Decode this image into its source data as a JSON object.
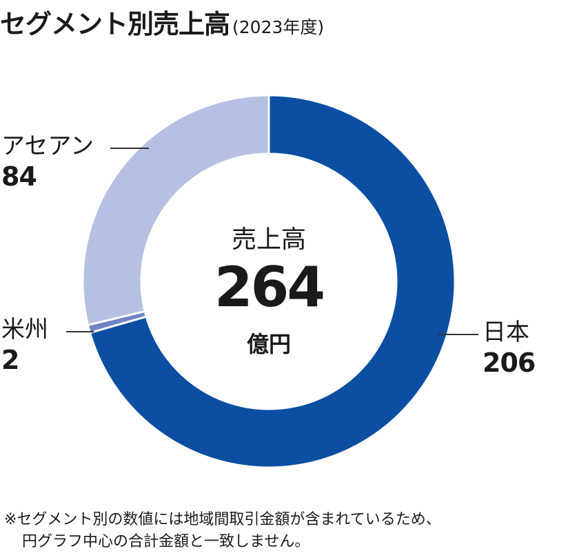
{
  "header": {
    "title": "セグメント別売上高",
    "subtitle": "(2023年度)"
  },
  "center": {
    "label": "売上高",
    "value": "264",
    "unit": "億円"
  },
  "note": {
    "line1": "※セグメント別の数値には地域間取引金額が含まれているため、",
    "line2": "円グラフ中心の合計金額と一致しません。"
  },
  "colors": {
    "japan": "#0b4ea2",
    "americas": "#6f84c3",
    "asean": "#b5c0e3",
    "separator": "#ffffff"
  },
  "chart_data": {
    "type": "pie",
    "variant": "donut",
    "title": "セグメント別売上高",
    "subtitle": "(2023年度)",
    "total": 264,
    "unit": "億円",
    "categories": [
      "日本",
      "米州",
      "アセアン"
    ],
    "values": [
      206,
      2,
      84
    ],
    "series": [
      {
        "name": "日本",
        "value": 206,
        "label": "206"
      },
      {
        "name": "米州",
        "value": 2,
        "label": "2"
      },
      {
        "name": "アセアン",
        "value": 84,
        "label": "84"
      }
    ]
  }
}
